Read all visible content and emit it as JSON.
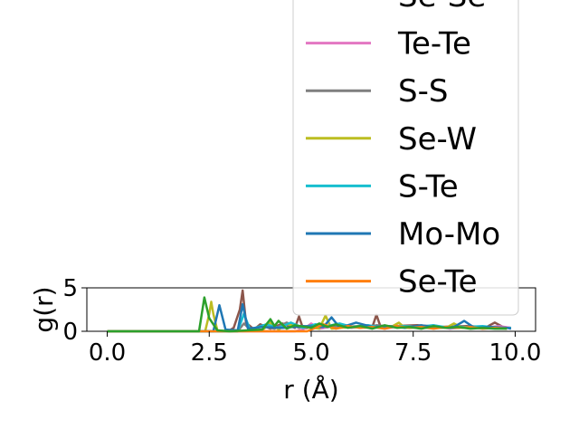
{
  "chart_data": {
    "type": "line",
    "xlabel": "r (Å)",
    "ylabel": "g(r)",
    "xlim": [
      -0.5,
      10.5
    ],
    "ylim": [
      0,
      5
    ],
    "xticks": [
      "0.0",
      "2.5",
      "5.0",
      "7.5",
      "10.0"
    ],
    "yticks": [
      "0",
      "5"
    ],
    "legend_placement": "top-right",
    "series": [
      {
        "name": "Se-Se",
        "color": "#8c564b",
        "x": [
          0,
          2.8,
          3.0,
          3.1,
          3.25,
          3.32,
          3.4,
          3.6,
          3.75,
          4.0,
          4.3,
          4.6,
          4.7,
          4.8,
          5.2,
          5.8,
          6.2,
          6.5,
          6.6,
          6.7,
          7.0,
          7.6,
          8.2,
          8.8,
          9.3,
          9.5,
          9.7,
          9.9
        ],
        "y": [
          0,
          0,
          0.1,
          0.4,
          2.5,
          4.7,
          1.0,
          0.2,
          0.8,
          0.3,
          0.9,
          0.4,
          1.7,
          0.3,
          0.7,
          0.5,
          0.6,
          0.5,
          1.9,
          0.5,
          0.6,
          0.7,
          0.5,
          0.6,
          0.5,
          1.0,
          0.5,
          0.4
        ]
      },
      {
        "name": "Te-Te",
        "color": "#e377c2",
        "x": [
          0,
          4.6,
          4.8,
          5.0,
          5.2,
          5.6,
          6.0,
          6.4,
          6.8,
          7.2,
          7.6,
          8.0,
          8.4,
          8.8,
          9.2,
          9.6,
          9.9
        ],
        "y": [
          0,
          0,
          0.2,
          0.9,
          0.3,
          0.6,
          0.4,
          0.7,
          0.3,
          0.6,
          0.4,
          0.7,
          0.3,
          0.5,
          0.4,
          0.6,
          0.4
        ]
      },
      {
        "name": "S-S",
        "color": "#7f7f7f",
        "x": [
          0,
          3.2,
          3.35,
          3.5,
          3.8,
          4.1,
          4.4,
          4.7,
          5.0,
          5.4,
          5.8,
          6.2,
          6.6,
          7.0,
          7.4,
          7.8,
          8.2,
          8.6,
          9.0,
          9.4,
          9.8
        ],
        "y": [
          0,
          0,
          0.9,
          0.2,
          0.6,
          0.3,
          1.0,
          0.4,
          0.7,
          0.5,
          0.6,
          0.4,
          0.7,
          0.5,
          0.6,
          0.4,
          0.5,
          0.6,
          0.4,
          0.5,
          0.4
        ]
      },
      {
        "name": "Se-W",
        "color": "#bcbd22",
        "x": [
          0,
          2.4,
          2.5,
          2.55,
          2.6,
          2.7,
          3.0,
          3.8,
          4.0,
          4.2,
          4.4,
          5.2,
          5.35,
          5.5,
          6.0,
          6.5,
          7.0,
          7.15,
          7.3,
          7.8,
          8.3,
          8.5,
          8.7,
          9.2,
          9.6,
          9.9
        ],
        "y": [
          0,
          0,
          2.0,
          3.4,
          2.0,
          0.1,
          0,
          0.1,
          1.0,
          0.2,
          0.8,
          0.3,
          1.8,
          0.3,
          0.5,
          0.4,
          0.6,
          1.0,
          0.4,
          0.5,
          0.4,
          0.9,
          0.4,
          0.5,
          0.4,
          0.4
        ]
      },
      {
        "name": "S-Te",
        "color": "#17becf",
        "x": [
          0,
          3.2,
          3.35,
          3.5,
          3.9,
          4.2,
          4.5,
          4.8,
          5.1,
          5.4,
          5.7,
          6.0,
          6.4,
          6.8,
          7.2,
          7.6,
          8.0,
          8.4,
          8.8,
          9.2,
          9.6,
          9.9
        ],
        "y": [
          0,
          0,
          2.0,
          0.2,
          0.8,
          0.4,
          1.0,
          0.4,
          0.8,
          0.6,
          0.9,
          0.5,
          0.7,
          0.4,
          0.6,
          0.5,
          0.7,
          0.4,
          0.5,
          0.6,
          0.4,
          0.4
        ]
      },
      {
        "name": "Mo-Mo",
        "color": "#1f77b4",
        "x": [
          0,
          2.6,
          2.75,
          2.9,
          3.2,
          3.32,
          3.45,
          3.8,
          4.3,
          4.8,
          5.3,
          5.5,
          5.7,
          6.1,
          6.5,
          6.9,
          7.3,
          7.7,
          8.1,
          8.5,
          8.75,
          9.0,
          9.4,
          9.8,
          9.9
        ],
        "y": [
          0,
          0,
          3.0,
          0.2,
          0.1,
          3.1,
          0.3,
          0.5,
          0.4,
          0.6,
          0.5,
          1.6,
          0.4,
          1.0,
          0.5,
          0.6,
          0.4,
          0.7,
          0.4,
          0.5,
          1.2,
          0.4,
          0.5,
          0.4,
          0.3
        ]
      },
      {
        "name": "Se-Te",
        "color": "#ff7f0e",
        "x": [
          0,
          4.9,
          5.1,
          5.3,
          5.6,
          5.9,
          6.2,
          6.5,
          6.8,
          7.1,
          7.4,
          7.7,
          8.0,
          8.3,
          8.6,
          8.9,
          9.2,
          9.5,
          9.8
        ],
        "y": [
          0,
          0,
          0.4,
          0.8,
          0.3,
          0.6,
          0.4,
          0.5,
          0.3,
          0.6,
          0.4,
          0.5,
          0.3,
          0.5,
          0.4,
          0.5,
          0.3,
          0.4,
          0.3
        ]
      },
      {
        "name": "",
        "color": "#2ca02c",
        "x": [
          0,
          2.25,
          2.38,
          2.5,
          2.7,
          3.0,
          3.8,
          4.0,
          4.1,
          4.2,
          4.4,
          4.6,
          5.0,
          5.2,
          5.4,
          5.6,
          5.9,
          6.2,
          6.5,
          6.8,
          7.1,
          7.4,
          7.7,
          8.0,
          8.3,
          8.6,
          8.9,
          9.2,
          9.5,
          9.8
        ],
        "y": [
          0,
          0,
          3.9,
          1.5,
          0.1,
          0,
          0.2,
          1.4,
          0.6,
          1.2,
          0.3,
          0.7,
          0.4,
          0.9,
          0.5,
          0.8,
          0.4,
          0.6,
          0.3,
          0.7,
          0.4,
          0.5,
          0.3,
          0.6,
          0.4,
          0.5,
          0.3,
          0.4,
          0.3,
          0.3
        ]
      }
    ],
    "legend": [
      {
        "label": "Se-Se",
        "color": "#8c564b"
      },
      {
        "label": "Te-Te",
        "color": "#e377c2"
      },
      {
        "label": "S-S",
        "color": "#7f7f7f"
      },
      {
        "label": "Se-W",
        "color": "#bcbd22"
      },
      {
        "label": "S-Te",
        "color": "#17becf"
      },
      {
        "label": "Mo-Mo",
        "color": "#1f77b4"
      },
      {
        "label": "Se-Te",
        "color": "#ff7f0e"
      }
    ]
  }
}
